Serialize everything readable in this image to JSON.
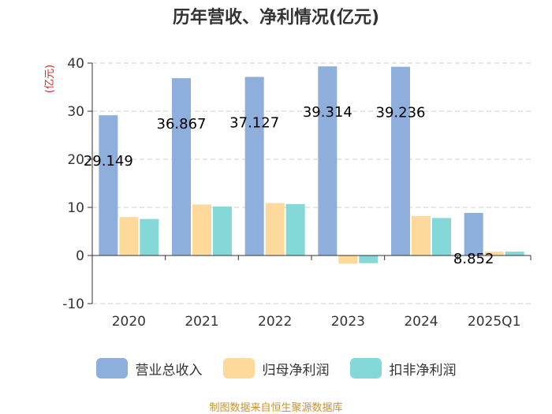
{
  "chart_data": {
    "type": "bar",
    "title": "历年营收、净利情况(亿元)",
    "ylabel": "(亿元)",
    "categories": [
      "2020",
      "2021",
      "2022",
      "2023",
      "2024",
      "2025Q1"
    ],
    "ylim": [
      -10,
      40
    ],
    "yticks": [
      -10,
      0,
      10,
      20,
      30,
      40
    ],
    "grid": true,
    "legend_position": "bottom",
    "series": [
      {
        "name": "营业总收入",
        "color": "#8eafdc",
        "values": [
          29.149,
          36.867,
          37.127,
          39.314,
          39.236,
          8.852
        ],
        "labels": [
          "29.149",
          "36.867",
          "37.127",
          "39.314",
          "39.236",
          "8.852"
        ]
      },
      {
        "name": "归母净利润",
        "color": "#fdd99b",
        "values": [
          8.0,
          10.6,
          10.9,
          -1.7,
          8.2,
          0.8
        ]
      },
      {
        "name": "扣非净利润",
        "color": "#84d8d8",
        "values": [
          7.6,
          10.2,
          10.7,
          -1.6,
          7.8,
          0.8
        ]
      }
    ]
  },
  "source": "制图数据来自恒生聚源数据库"
}
